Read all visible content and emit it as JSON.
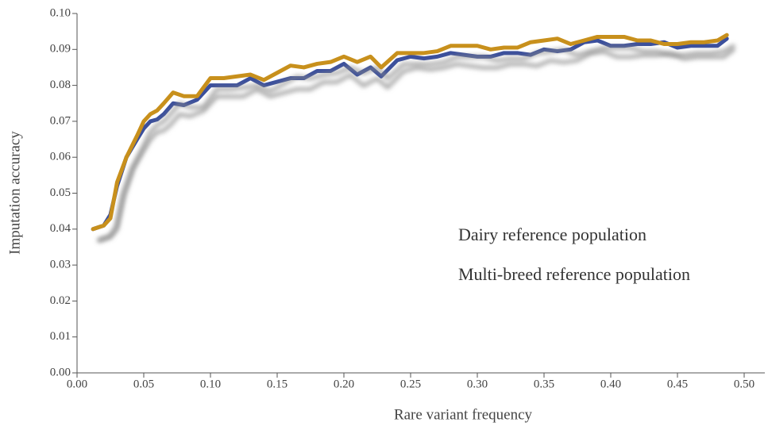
{
  "chart_data": {
    "type": "line",
    "x_label": "Rare variant frequency",
    "y_label": "Imputation accuracy",
    "x": [
      0.012,
      0.02,
      0.025,
      0.03,
      0.037,
      0.045,
      0.05,
      0.055,
      0.06,
      0.065,
      0.072,
      0.08,
      0.09,
      0.1,
      0.11,
      0.12,
      0.13,
      0.14,
      0.15,
      0.16,
      0.17,
      0.18,
      0.19,
      0.2,
      0.21,
      0.22,
      0.228,
      0.24,
      0.25,
      0.26,
      0.27,
      0.28,
      0.29,
      0.3,
      0.31,
      0.32,
      0.33,
      0.34,
      0.35,
      0.36,
      0.37,
      0.38,
      0.39,
      0.4,
      0.41,
      0.42,
      0.43,
      0.44,
      0.45,
      0.46,
      0.47,
      0.48,
      0.487
    ],
    "series": [
      {
        "name": "Dairy reference population",
        "color": "#3a4f9c",
        "values": [
          0.04,
          0.041,
          0.044,
          0.052,
          0.06,
          0.065,
          0.068,
          0.07,
          0.0705,
          0.072,
          0.075,
          0.0745,
          0.076,
          0.08,
          0.08,
          0.08,
          0.082,
          0.08,
          0.081,
          0.082,
          0.082,
          0.084,
          0.084,
          0.086,
          0.083,
          0.085,
          0.0825,
          0.087,
          0.088,
          0.0875,
          0.088,
          0.089,
          0.0885,
          0.088,
          0.088,
          0.089,
          0.089,
          0.0885,
          0.09,
          0.0895,
          0.09,
          0.092,
          0.0925,
          0.091,
          0.091,
          0.0915,
          0.0915,
          0.092,
          0.0905,
          0.091,
          0.091,
          0.091,
          0.093
        ]
      },
      {
        "name": "Multi-breed reference population",
        "color": "#c8901a",
        "values": [
          0.04,
          0.041,
          0.043,
          0.053,
          0.06,
          0.066,
          0.07,
          0.072,
          0.073,
          0.075,
          0.078,
          0.077,
          0.077,
          0.082,
          0.082,
          0.0825,
          0.083,
          0.0815,
          0.0835,
          0.0855,
          0.085,
          0.086,
          0.0865,
          0.088,
          0.0865,
          0.088,
          0.085,
          0.089,
          0.089,
          0.089,
          0.0895,
          0.091,
          0.091,
          0.091,
          0.09,
          0.0905,
          0.0905,
          0.092,
          0.0925,
          0.093,
          0.0915,
          0.0925,
          0.0935,
          0.0935,
          0.0935,
          0.0925,
          0.0925,
          0.0915,
          0.0915,
          0.092,
          0.092,
          0.0925,
          0.094
        ]
      }
    ],
    "xlim": [
      0,
      0.5
    ],
    "ylim": [
      0,
      0.1
    ],
    "xticks": [
      {
        "value": 0,
        "label": "0.00"
      },
      0.05,
      {
        "value": 0.1,
        "label": "0.10"
      },
      0.15,
      {
        "value": 0.2,
        "label": "0.20"
      },
      0.25,
      {
        "value": 0.3,
        "label": "0.30"
      },
      0.35,
      {
        "value": 0.4,
        "label": "0.40"
      },
      0.45,
      {
        "value": 0.5,
        "label": "0.50"
      }
    ],
    "yticks": [
      {
        "value": 0,
        "label": "0.00"
      },
      0.01,
      0.02,
      0.03,
      0.04,
      0.05,
      0.06,
      0.07,
      0.08,
      0.09,
      {
        "value": 0.1,
        "label": "0.10"
      }
    ]
  }
}
